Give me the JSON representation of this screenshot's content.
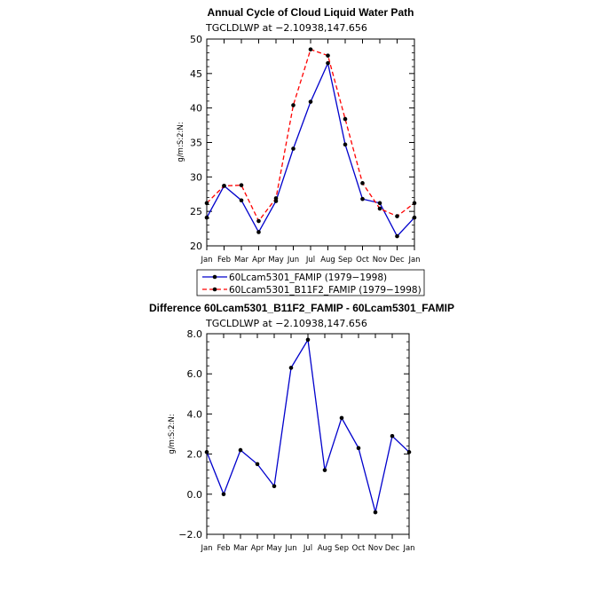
{
  "chart_data": [
    {
      "type": "line",
      "title": "Annual Cycle of Cloud Liquid Water Path",
      "subtitle": "TGCLDLWP at −2.10938,147.656",
      "ylabel": "g/m:S:2:N:",
      "xlabel": "",
      "categories": [
        "Jan",
        "Feb",
        "Mar",
        "Apr",
        "May",
        "Jun",
        "Jul",
        "Aug",
        "Sep",
        "Oct",
        "Nov",
        "Dec",
        "Jan"
      ],
      "ylim": [
        20,
        50
      ],
      "yticks": [
        "20",
        "25",
        "30",
        "35",
        "40",
        "45",
        "50"
      ],
      "legend_placement": "bottom",
      "series": [
        {
          "name": "60Lcam5301_FAMIP (1979−1998)",
          "color": "#0000cc",
          "dash": "solid",
          "values": [
            24.1,
            28.7,
            26.6,
            22.0,
            26.5,
            34.1,
            40.9,
            46.5,
            34.7,
            26.8,
            26.2,
            21.4,
            24.1
          ]
        },
        {
          "name": "60Lcam5301_B11F2_FAMIP (1979−1998)",
          "color": "#ff0000",
          "dash": "dashed",
          "values": [
            26.2,
            28.7,
            28.8,
            23.6,
            26.9,
            40.4,
            48.5,
            47.6,
            38.4,
            29.1,
            25.4,
            24.3,
            26.2
          ]
        }
      ]
    },
    {
      "type": "line",
      "title": "Difference 60Lcam5301_B11F2_FAMIP - 60Lcam5301_FAMIP",
      "subtitle": "TGCLDLWP at −2.10938,147.656",
      "ylabel": "g/m:S:2:N:",
      "xlabel": "",
      "categories": [
        "Jan",
        "Feb",
        "Mar",
        "Apr",
        "May",
        "Jun",
        "Jul",
        "Aug",
        "Sep",
        "Oct",
        "Nov",
        "Dec",
        "Jan"
      ],
      "ylim": [
        -2,
        8
      ],
      "yticks": [
        "−2.0",
        "0.0",
        "2.0",
        "4.0",
        "6.0",
        "8.0"
      ],
      "series": [
        {
          "color": "#0000cc",
          "dash": "solid",
          "values": [
            2.1,
            0.0,
            2.2,
            1.5,
            0.4,
            6.3,
            7.7,
            1.2,
            3.8,
            2.3,
            -0.9,
            2.9,
            2.1
          ]
        }
      ]
    }
  ]
}
